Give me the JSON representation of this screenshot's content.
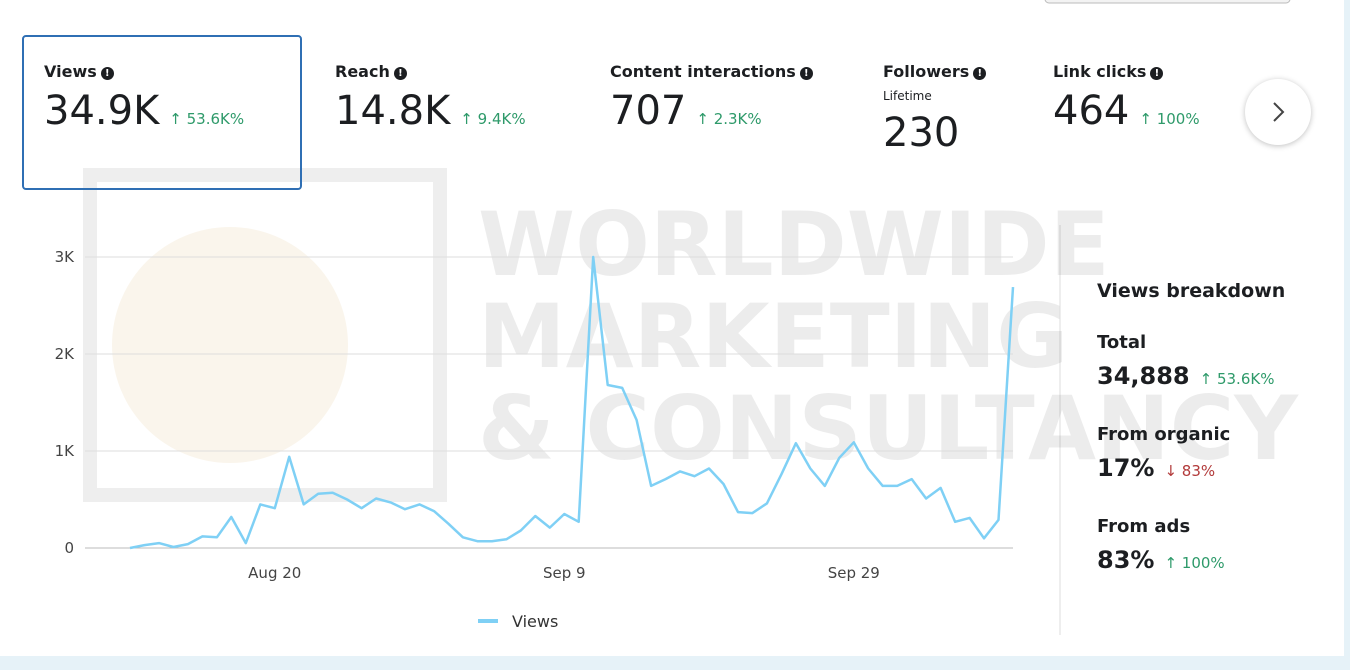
{
  "metrics": [
    {
      "label": "Views",
      "value": "34.9K",
      "change": "↑ 53.6K%",
      "selected": true
    },
    {
      "label": "Reach",
      "value": "14.8K",
      "change": "↑ 9.4K%"
    },
    {
      "label": "Content interactions",
      "value": "707",
      "change": "↑ 2.3K%"
    },
    {
      "label": "Followers",
      "sublabel": "Lifetime",
      "value": "230"
    },
    {
      "label": "Link clicks",
      "value": "464",
      "change": "↑ 100%"
    }
  ],
  "watermark": [
    "WORLDWIDE",
    "MARKETING",
    "& CONSULTANCY"
  ],
  "chart_data": {
    "type": "line",
    "categories": [
      null,
      null,
      null,
      null,
      null,
      null,
      null,
      null,
      null,
      null,
      "Aug 20",
      null,
      null,
      null,
      null,
      null,
      null,
      null,
      null,
      null,
      null,
      null,
      null,
      null,
      null,
      null,
      null,
      null,
      null,
      null,
      "Sep 9",
      null,
      null,
      null,
      null,
      null,
      null,
      null,
      null,
      null,
      null,
      null,
      null,
      null,
      null,
      null,
      null,
      null,
      null,
      null,
      "Sep 29",
      null,
      null,
      null,
      null,
      null,
      null,
      null,
      null,
      null,
      null,
      null
    ],
    "series": [
      {
        "name": "Views",
        "color": "#7fd0f5",
        "values": [
          0,
          30,
          50,
          10,
          40,
          120,
          110,
          320,
          50,
          450,
          410,
          940,
          450,
          560,
          570,
          500,
          410,
          510,
          470,
          400,
          450,
          380,
          250,
          110,
          70,
          70,
          90,
          180,
          330,
          210,
          350,
          270,
          3000,
          1680,
          1650,
          1320,
          640,
          710,
          790,
          740,
          820,
          660,
          370,
          360,
          460,
          760,
          1080,
          820,
          640,
          930,
          1090,
          820,
          640,
          640,
          710,
          510,
          620,
          270,
          310,
          100,
          290,
          2690
        ]
      }
    ],
    "ylim": [
      0,
      3000
    ],
    "yticks": [
      0,
      {
        "value": 1000,
        "label": "1K"
      },
      {
        "value": 2000,
        "label": "2K"
      },
      {
        "value": 3000,
        "label": "3K"
      }
    ],
    "grid": true,
    "legend": "bottom"
  },
  "breakdown": {
    "title": "Views breakdown",
    "items": [
      {
        "label": "Total",
        "value": "34,888",
        "change": "↑ 53.6K%",
        "direction": "up"
      },
      {
        "label": "From organic",
        "value": "17%",
        "change": "↓ 83%",
        "direction": "down"
      },
      {
        "label": "From ads",
        "value": "83%",
        "change": "↑ 100%",
        "direction": "up"
      }
    ]
  }
}
